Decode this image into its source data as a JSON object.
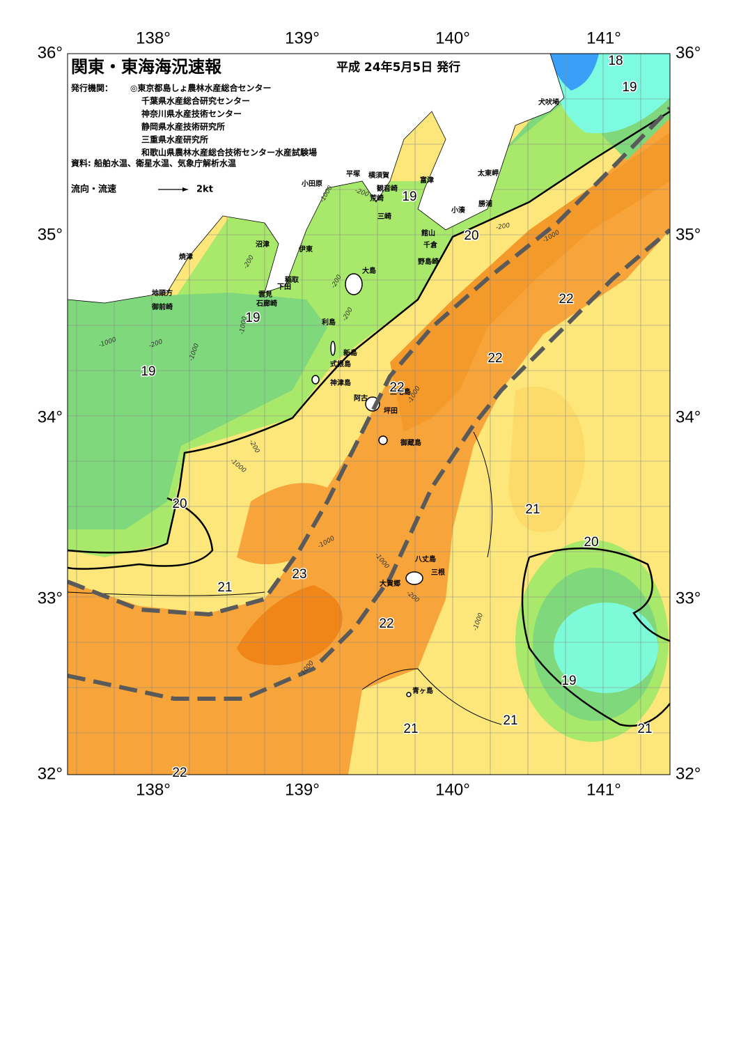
{
  "header": {
    "title": "関東・東海海況速報",
    "date": "平成 24年5月5日 発行"
  },
  "issuers": {
    "label": "発行機関：",
    "organizations": [
      "◎東京都島しょ農林水産総合センター",
      "千葉県水産総合研究センター",
      "神奈川県水産技術センター",
      "静岡県水産技術研究所",
      "三重県水産研究所",
      "和歌山県農林水産総合技術センター水産試験場"
    ]
  },
  "sources": "資料: 船舶水温、衛星水温、気象庁解析水温",
  "legend": {
    "label": "流向・流速",
    "speed": "2kt"
  },
  "longitude_labels": [
    "138°",
    "139°",
    "140°",
    "141°"
  ],
  "latitude_labels": [
    "36°",
    "35°",
    "34°",
    "33°",
    "32°"
  ],
  "place_names": [
    "犬吠埼",
    "太東岬",
    "勝浦",
    "小湊",
    "富津",
    "観音崎",
    "横須賀",
    "平塚",
    "小田原",
    "荒崎",
    "三崎",
    "館山",
    "千倉",
    "野島崎",
    "沼津",
    "伊東",
    "焼津",
    "大島",
    "稲取",
    "下田",
    "雲見",
    "石廊崎",
    "地頭方",
    "御前崎",
    "利島",
    "新島",
    "式根島",
    "神津島",
    "三宅島",
    "阿古",
    "坪田",
    "御蔵島",
    "八丈島",
    "三根",
    "大賀郷",
    "青ヶ島"
  ],
  "temperature_labels": [
    "18",
    "19",
    "19",
    "20",
    "22",
    "19",
    "22",
    "19",
    "22",
    "20",
    "21",
    "20",
    "23",
    "21",
    "22",
    "19",
    "21",
    "21",
    "21",
    "22"
  ],
  "depth_labels": [
    "-200",
    "-200",
    "-200",
    "-200",
    "-200",
    "-200",
    "-200",
    "-200",
    "-1000",
    "-1000",
    "-1000",
    "-1000",
    "-1000",
    "-1000",
    "-1000",
    "-1000",
    "-1000",
    "-1000",
    "-1000"
  ]
}
